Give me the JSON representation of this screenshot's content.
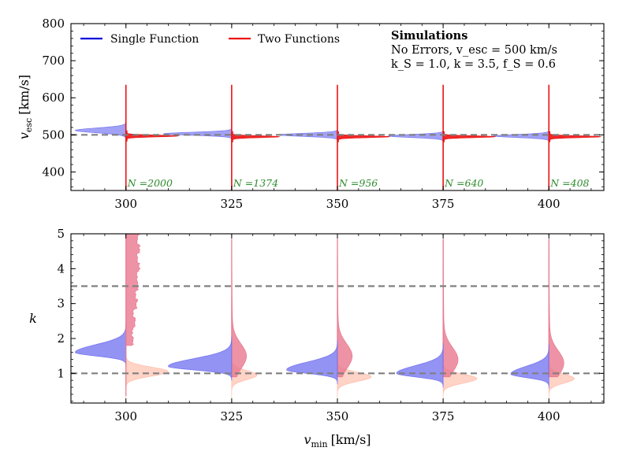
{
  "chart_data": [
    {
      "type": "violin",
      "panel": "top",
      "ylabel_main": "v",
      "ylabel_sub": "esc",
      "ylabel_unit": "[km/s]",
      "ylim": [
        350,
        800
      ],
      "yticks": [
        "400",
        "500",
        "600",
        "700",
        "800"
      ],
      "xlim": [
        287,
        413
      ],
      "xticks": [
        "300",
        "325",
        "350",
        "375",
        "400"
      ],
      "true_value": 500,
      "legend": [
        {
          "label": "Single Function",
          "color": "#0000dd"
        },
        {
          "label": "Two Functions",
          "color": "#ee1111"
        }
      ],
      "annotation": {
        "title": "Simulations",
        "line1": "No Errors, v_esc = 500 km/s",
        "line2": "k_S = 1.0, k = 3.5, f_S = 0.6"
      },
      "counts": [
        "N =2000",
        "N =1374",
        "N =956",
        "N =640",
        "N =408"
      ],
      "series": [
        {
          "name": "Single Function",
          "color": "#6f6ff0",
          "groups": [
            {
              "x": 300,
              "median": 512,
              "spread": 14,
              "width": 12
            },
            {
              "x": 325,
              "median": 503,
              "spread": 9,
              "width": 16
            },
            {
              "x": 350,
              "median": 500,
              "spread": 9,
              "width": 14
            },
            {
              "x": 375,
              "median": 497,
              "spread": 9,
              "width": 13
            },
            {
              "x": 400,
              "median": 497,
              "spread": 9,
              "width": 13
            }
          ]
        },
        {
          "name": "Two Functions",
          "color": "#ee1111",
          "groups": [
            {
              "x": 300,
              "median": 497,
              "range": [
                350,
                635
              ],
              "width": 12
            },
            {
              "x": 325,
              "median": 495,
              "range": [
                350,
                635
              ],
              "width": 11
            },
            {
              "x": 350,
              "median": 495,
              "range": [
                350,
                635
              ],
              "width": 12
            },
            {
              "x": 375,
              "median": 495,
              "range": [
                350,
                635
              ],
              "width": 12
            },
            {
              "x": 400,
              "median": 495,
              "range": [
                350,
                635
              ],
              "width": 12
            }
          ]
        }
      ]
    },
    {
      "type": "violin",
      "panel": "bottom",
      "ylabel": "k",
      "xlabel_main": "v",
      "xlabel_sub": "min",
      "xlabel_unit": "[km/s]",
      "ylim": [
        0.15,
        5
      ],
      "yticks": [
        "1",
        "2",
        "3",
        "4",
        "5"
      ],
      "xlim": [
        287,
        413
      ],
      "xticks": [
        "300",
        "325",
        "350",
        "375",
        "400"
      ],
      "true_values": [
        1.0,
        3.5
      ],
      "series": [
        {
          "name": "Single Function",
          "color": "#6f6ff0",
          "groups": [
            {
              "x": 300,
              "median": 1.6,
              "width": 12
            },
            {
              "x": 325,
              "median": 1.2,
              "width": 15
            },
            {
              "x": 350,
              "median": 1.1,
              "width": 12
            },
            {
              "x": 375,
              "median": 1.0,
              "width": 11
            },
            {
              "x": 400,
              "median": 0.98,
              "width": 9
            }
          ]
        },
        {
          "name": "Two Functions (k)",
          "color": "#e9788f",
          "groups": [
            {
              "x": 300,
              "median": 3.5,
              "width": 3
            },
            {
              "x": 325,
              "median": 1.5,
              "width": 2
            },
            {
              "x": 350,
              "median": 1.5,
              "width": 2
            },
            {
              "x": 375,
              "median": 1.4,
              "width": 2
            },
            {
              "x": 400,
              "median": 1.3,
              "width": 2
            }
          ]
        },
        {
          "name": "Two Functions (k_S)",
          "color": "#ffb5a0",
          "groups": [
            {
              "x": 300,
              "median": 1.05,
              "width": 10
            },
            {
              "x": 325,
              "median": 0.95,
              "width": 6
            },
            {
              "x": 350,
              "median": 0.9,
              "width": 8
            },
            {
              "x": 375,
              "median": 0.85,
              "width": 8
            },
            {
              "x": 400,
              "median": 0.85,
              "width": 6
            }
          ]
        }
      ]
    }
  ]
}
